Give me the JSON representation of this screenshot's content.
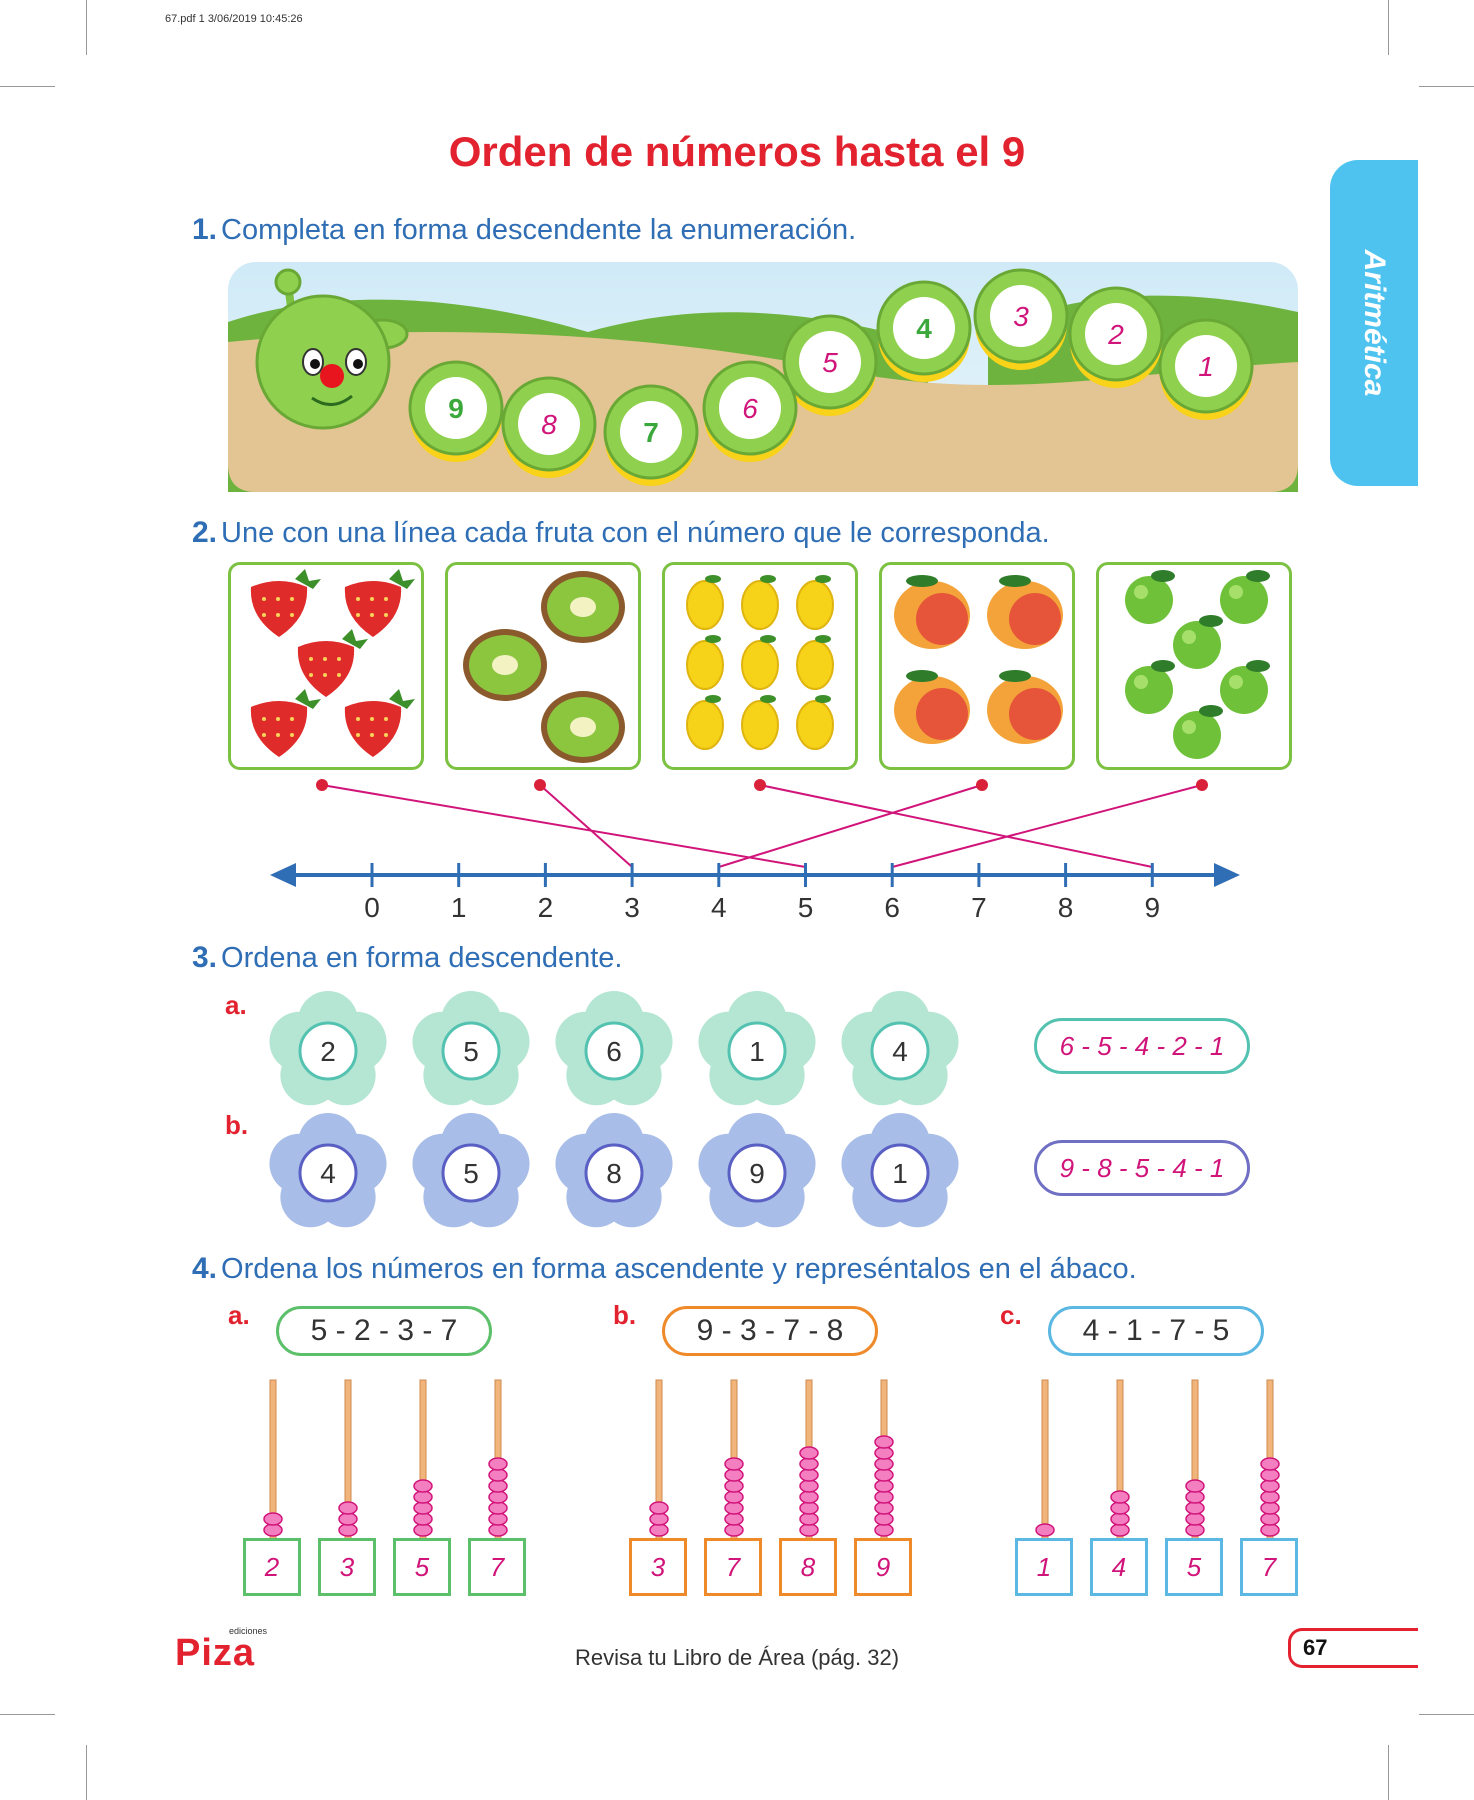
{
  "print_info": "67.pdf  1  3/06/2019  10:45:26",
  "title": "Orden de números hasta el 9",
  "side_tab": "Aritmética",
  "q1": {
    "number": "1.",
    "text": "Completa en forma descendente la enumeración.",
    "segments": [
      "9",
      "8",
      "7",
      "6",
      "5",
      "4",
      "3",
      "2",
      "1"
    ]
  },
  "q2": {
    "number": "2.",
    "text": "Une con una línea cada fruta con el número que le corresponda.",
    "fruits": [
      "strawberries",
      "kiwis",
      "lemons",
      "mangoes",
      "apples"
    ],
    "numberline": [
      "0",
      "1",
      "2",
      "3",
      "4",
      "5",
      "6",
      "7",
      "8",
      "9"
    ]
  },
  "q3": {
    "number": "3.",
    "text": "Ordena en forma descendente.",
    "a": {
      "label": "a.",
      "flowers": [
        "2",
        "5",
        "6",
        "1",
        "4"
      ],
      "answer": "6 - 5 - 4 - 2 - 1"
    },
    "b": {
      "label": "b.",
      "flowers": [
        "4",
        "5",
        "8",
        "9",
        "1"
      ],
      "answer": "9 - 8 - 5 - 4 - 1"
    }
  },
  "q4": {
    "number": "4.",
    "text": "Ordena los números en forma ascendente y represéntalos en el ábaco.",
    "a": {
      "label": "a.",
      "sequence": "5 - 2 - 3 - 7",
      "boxes": [
        "2",
        "3",
        "5",
        "7"
      ],
      "color": "#5cbf6a"
    },
    "b": {
      "label": "b.",
      "sequence": "9 - 3 - 7 - 8",
      "boxes": [
        "3",
        "7",
        "8",
        "9"
      ],
      "color": "#ee8a2a"
    },
    "c": {
      "label": "c.",
      "sequence": "4 - 1 - 7 - 5",
      "boxes": [
        "1",
        "4",
        "5",
        "7"
      ],
      "color": "#5bb8e2"
    }
  },
  "footer": "Revisa tu Libro de Área (pág. 32)",
  "page_number": "67",
  "logo": {
    "text": "Piza",
    "tagline": "ediciones"
  }
}
